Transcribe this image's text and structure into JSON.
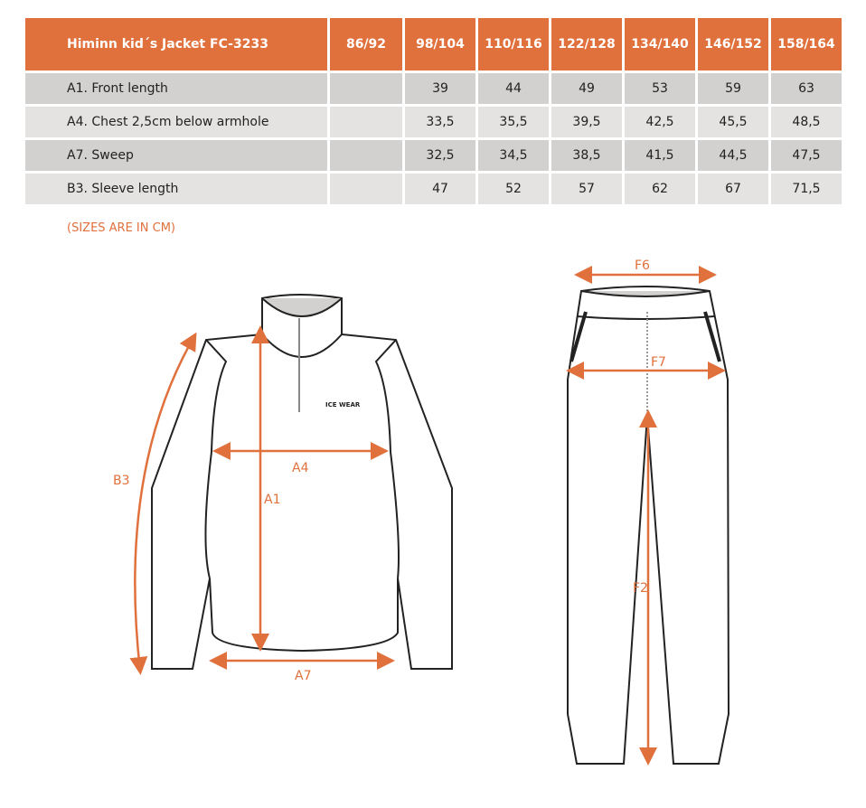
{
  "table": {
    "headers": [
      "Himinn kid´s Jacket FC-3233",
      "86/92",
      "98/104",
      "110/116",
      "122/128",
      "134/140",
      "146/152",
      "158/164"
    ],
    "rows": [
      {
        "label": "A1. Front length",
        "values": [
          "",
          "39",
          "44",
          "49",
          "53",
          "59",
          "63"
        ]
      },
      {
        "label": "A4. Chest 2,5cm below armhole",
        "values": [
          "",
          "33,5",
          "35,5",
          "39,5",
          "42,5",
          "45,5",
          "48,5"
        ]
      },
      {
        "label": "A7. Sweep",
        "values": [
          "",
          "32,5",
          "34,5",
          "38,5",
          "41,5",
          "44,5",
          "47,5"
        ]
      },
      {
        "label": "B3. Sleeve length",
        "values": [
          "",
          "47",
          "52",
          "57",
          "62",
          "67",
          "71,5"
        ]
      }
    ]
  },
  "note": "(SIZES ARE IN CM)",
  "diagram": {
    "jacket_labels": {
      "b3": "B3",
      "a4": "A4",
      "a1": "A1",
      "a7": "A7"
    },
    "pants_labels": {
      "f6": "F6",
      "f7": "F7",
      "f2": "F2"
    },
    "logo": "ICE WEAR",
    "accent": "#e0703c"
  }
}
